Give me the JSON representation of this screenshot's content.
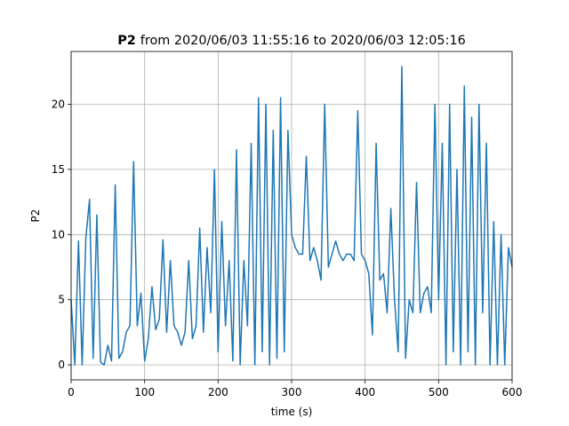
{
  "chart_data": {
    "type": "line",
    "title_parts": [
      "P2",
      "from 2020/06/03 11:55:16 to 2020/06/03 12:05:16"
    ],
    "xlabel": "time (s)",
    "ylabel": "P2",
    "x": [
      0,
      5,
      10,
      15,
      20,
      25,
      30,
      35,
      40,
      45,
      50,
      55,
      60,
      65,
      70,
      75,
      80,
      85,
      90,
      95,
      100,
      105,
      110,
      115,
      120,
      125,
      130,
      135,
      140,
      145,
      150,
      155,
      160,
      165,
      170,
      175,
      180,
      185,
      190,
      195,
      200,
      205,
      210,
      215,
      220,
      225,
      230,
      235,
      240,
      245,
      250,
      255,
      260,
      265,
      270,
      275,
      280,
      285,
      290,
      295,
      300,
      305,
      310,
      315,
      320,
      325,
      330,
      335,
      340,
      345,
      350,
      355,
      360,
      365,
      370,
      375,
      380,
      385,
      390,
      395,
      400,
      405,
      410,
      415,
      420,
      425,
      430,
      435,
      440,
      445,
      450,
      455,
      460,
      465,
      470,
      475,
      480,
      485,
      490,
      495,
      500,
      505,
      510,
      515,
      520,
      525,
      530,
      535,
      540,
      545,
      550,
      555,
      560,
      565,
      570,
      575,
      580,
      585,
      590,
      595,
      600
    ],
    "series": [
      {
        "name": "P2",
        "color": "#1f77b4",
        "values": [
          5,
          0,
          9.5,
          0,
          9.7,
          12.7,
          0.5,
          11.5,
          0.2,
          0,
          1.5,
          0.3,
          13.8,
          0.5,
          1,
          2.5,
          3,
          15.6,
          3,
          5.5,
          0.3,
          2,
          6,
          2.7,
          3.5,
          9.6,
          2.5,
          8,
          3,
          2.5,
          1.5,
          2.5,
          8,
          2,
          3,
          10.5,
          2.5,
          9,
          4,
          15,
          1,
          11,
          3,
          8,
          0.3,
          16.5,
          0,
          8,
          3,
          17,
          0,
          20.5,
          1,
          20,
          0,
          18,
          0.5,
          20.5,
          1,
          18,
          10,
          9,
          8.5,
          8.5,
          16,
          8,
          9,
          8,
          6.5,
          20,
          7.5,
          8.5,
          9.5,
          8.5,
          8,
          8.5,
          8.5,
          8,
          19.5,
          8.5,
          8,
          7,
          2.3,
          17,
          6.5,
          7,
          4,
          12,
          5,
          1,
          22.9,
          0.5,
          5,
          4,
          14,
          4,
          5.5,
          6,
          4,
          20,
          5,
          17,
          0,
          20,
          1,
          15,
          0,
          21.4,
          1,
          19,
          0,
          20,
          4,
          17,
          0,
          11,
          0,
          10,
          0,
          9,
          7.5
        ]
      }
    ],
    "xlim": [
      0,
      600
    ],
    "ylim": [
      -1.15,
      24.05
    ],
    "xticks": [
      0,
      100,
      200,
      300,
      400,
      500,
      600
    ],
    "yticks": [
      0,
      5,
      10,
      15,
      20
    ],
    "grid": true
  }
}
